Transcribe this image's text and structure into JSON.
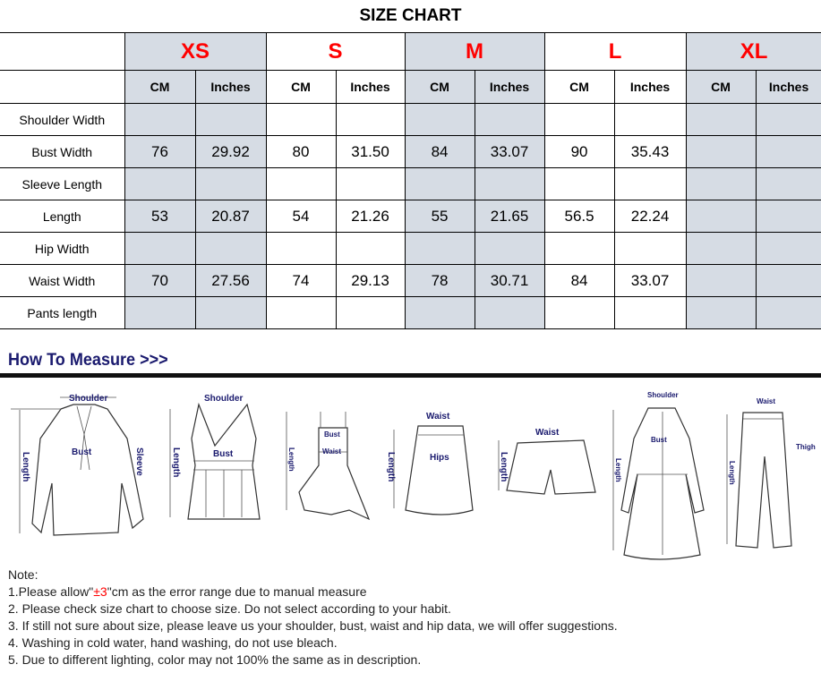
{
  "title": "SIZE CHART",
  "sizes": [
    "XS",
    "S",
    "M",
    "L",
    "XL"
  ],
  "units": [
    "CM",
    "Inches"
  ],
  "rows": [
    {
      "label": "Shoulder Width",
      "values": [
        "",
        "",
        "",
        "",
        "",
        "",
        "",
        "",
        "",
        ""
      ]
    },
    {
      "label": "Bust Width",
      "values": [
        "76",
        "29.92",
        "80",
        "31.50",
        "84",
        "33.07",
        "90",
        "35.43",
        "",
        ""
      ]
    },
    {
      "label": "Sleeve Length",
      "values": [
        "",
        "",
        "",
        "",
        "",
        "",
        "",
        "",
        "",
        ""
      ]
    },
    {
      "label": "Length",
      "values": [
        "53",
        "20.87",
        "54",
        "21.26",
        "55",
        "21.65",
        "56.5",
        "22.24",
        "",
        ""
      ]
    },
    {
      "label": "Hip Width",
      "values": [
        "",
        "",
        "",
        "",
        "",
        "",
        "",
        "",
        "",
        ""
      ]
    },
    {
      "label": "Waist Width",
      "values": [
        "70",
        "27.56",
        "74",
        "29.13",
        "78",
        "30.71",
        "84",
        "33.07",
        "",
        ""
      ]
    },
    {
      "label": "Pants length",
      "values": [
        "",
        "",
        "",
        "",
        "",
        "",
        "",
        "",
        "",
        ""
      ]
    }
  ],
  "colors": {
    "size_label": "#ff0000",
    "shaded_column": "#d6dce4",
    "measure_text": "#1a1a6e"
  },
  "how_to_measure": {
    "heading": "How To Measure >>>",
    "labels": {
      "shoulder": "Shoulder",
      "bust": "Bust",
      "sleeve": "Sleeve",
      "length": "Length",
      "waist": "Waist",
      "hips": "Hips",
      "thigh": "Thigh"
    }
  },
  "notes": {
    "heading": "Note:",
    "item1_prefix": "1.Please allow\"",
    "item1_highlight": "±3",
    "item1_suffix": "\"cm as the error range due to manual measure",
    "items": [
      "2. Please check size chart to choose size. Do not select according to your habit.",
      "3. If still not sure about size, please leave us your shoulder, bust, waist and hip data, we will offer suggestions.",
      "4. Washing in cold water, hand washing, do not use bleach.",
      "5. Due to different lighting, color may not 100% the same as in description."
    ]
  }
}
